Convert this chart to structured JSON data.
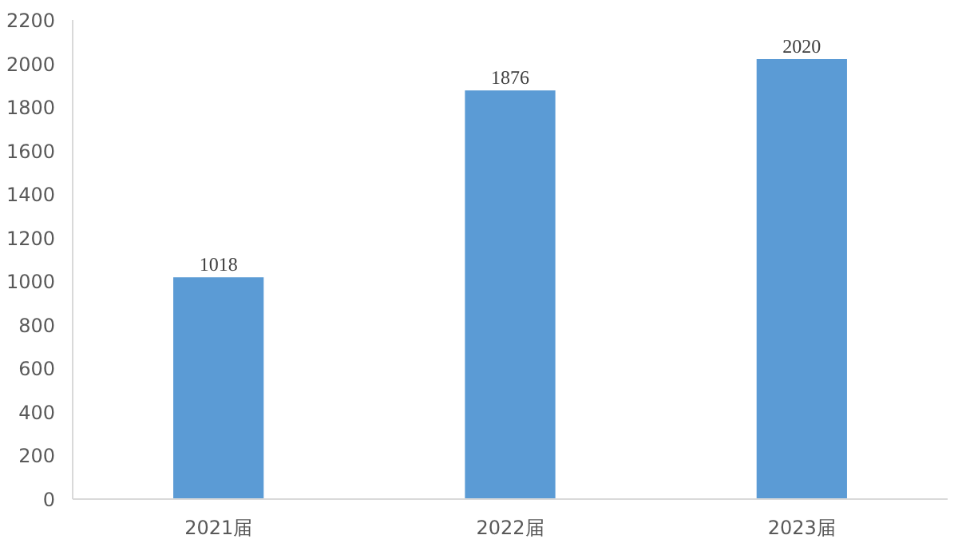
{
  "chart_data": {
    "type": "bar",
    "categories": [
      "2021届",
      "2022届",
      "2023届"
    ],
    "values": [
      1018,
      1876,
      2020
    ],
    "color": "#5b9bd5",
    "ylim": [
      0,
      2200
    ],
    "yticks": [
      0,
      200,
      400,
      600,
      800,
      1000,
      1200,
      1400,
      1600,
      1800,
      2000,
      2200
    ],
    "grid": false,
    "data_labels": true
  }
}
